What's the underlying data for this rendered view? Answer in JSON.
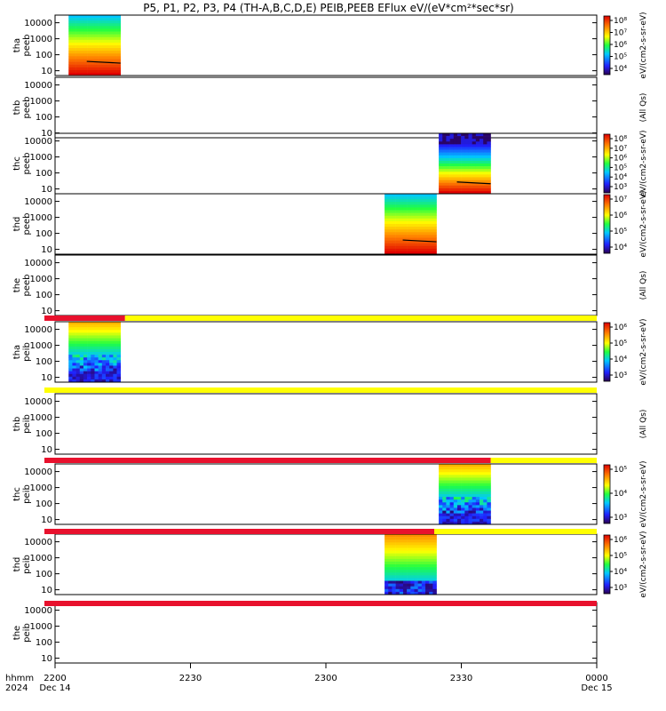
{
  "title": "P5, P1, P2, P3, P4 (TH-A,B,C,D,E) PEIB,PEEB EFlux eV/(eV*cm²*sec*sr)",
  "time_axis": {
    "row1": "hhmm",
    "row2": "2024",
    "ticks": [
      {
        "t": 0,
        "label": "2200",
        "sub": "Dec 14"
      },
      {
        "t": 30,
        "label": "2230",
        "sub": ""
      },
      {
        "t": 60,
        "label": "2300",
        "sub": ""
      },
      {
        "t": 90,
        "label": "2330",
        "sub": ""
      },
      {
        "t": 120,
        "label": "0000",
        "sub": "Dec 15"
      }
    ]
  },
  "y_ticks": [
    "10000",
    "1000",
    "100",
    "10"
  ],
  "colors": {
    "flag_red": "#e8112d",
    "flag_yellow": "#ffff00",
    "axis": "#000000"
  },
  "chart_data": {
    "type": "heatmap",
    "x_units": "minutes after 2200 UT, 2024 Dec 14",
    "xlim": [
      0,
      120
    ],
    "ylim": [
      5,
      30000
    ],
    "yscale": "log",
    "panels": [
      {
        "label1": "tha",
        "label2": "peeb",
        "data_start": 3,
        "data_end": 14.5,
        "kind": "electron",
        "colorbar": {
          "ticks": [
            "10⁸",
            "10⁷",
            "10⁶",
            "10⁵",
            "10⁴"
          ],
          "label": "eV/(cm2-s-sr-eV)"
        }
      },
      {
        "label1": "thb",
        "label2": "peeb",
        "data_start": null,
        "data_end": null,
        "kind": "empty",
        "colorbar": {
          "ticks": [],
          "label": "(All Qs)"
        }
      },
      {
        "label1": "thc",
        "label2": "peeb",
        "data_start": 85,
        "data_end": 96.5,
        "kind": "electron_c",
        "colorbar": {
          "ticks": [
            "10⁸",
            "10⁷",
            "10⁶",
            "10⁵",
            "10⁴",
            "10³"
          ],
          "label": "eV/(cm2-s-sr-eV)"
        }
      },
      {
        "label1": "thd",
        "label2": "peeb",
        "data_start": 73,
        "data_end": 84.5,
        "kind": "electron",
        "colorbar": {
          "ticks": [
            "10⁷",
            "10⁶",
            "10⁵",
            "10⁴"
          ],
          "label": "eV/(cm2-s-sr-eV)"
        }
      },
      {
        "label1": "the",
        "label2": "peeb",
        "data_start": null,
        "data_end": null,
        "kind": "empty",
        "colorbar": {
          "ticks": [],
          "label": "(All Qs)"
        }
      },
      {
        "label1": "tha",
        "label2": "peib",
        "data_start": 3,
        "data_end": 14.5,
        "kind": "ion",
        "colorbar": {
          "ticks": [
            "10⁶",
            "10⁵",
            "10⁴",
            "10³"
          ],
          "label": "eV/(cm2-s-sr-eV)"
        }
      },
      {
        "label1": "thb",
        "label2": "peib",
        "data_start": null,
        "data_end": null,
        "kind": "empty",
        "colorbar": {
          "ticks": [],
          "label": "(All Qs)"
        }
      },
      {
        "label1": "thc",
        "label2": "peib",
        "data_start": 85,
        "data_end": 96.5,
        "kind": "ion",
        "colorbar": {
          "ticks": [
            "10⁵",
            "10⁴",
            "10³"
          ],
          "label": "eV/(cm2-s-sr-eV)"
        }
      },
      {
        "label1": "thd",
        "label2": "peib",
        "data_start": 73,
        "data_end": 84.5,
        "kind": "ion_d",
        "colorbar": {
          "ticks": [
            "10⁶",
            "10⁵",
            "10⁴",
            "10³"
          ],
          "label": "eV/(cm2-s-sr-eV)"
        }
      },
      {
        "label1": "the",
        "label2": "peib",
        "data_start": null,
        "data_end": null,
        "kind": "empty",
        "colorbar": {
          "ticks": [],
          "label": ""
        }
      }
    ],
    "flag_bars": [
      {
        "after_panel": 5,
        "red_end": 15.5
      },
      {
        "after_panel": 6,
        "red_end": null
      },
      {
        "after_panel": 7,
        "red_end": 96.5
      },
      {
        "after_panel": 8,
        "red_end": 84
      },
      {
        "after_panel": 9,
        "red_end": 120
      }
    ]
  }
}
